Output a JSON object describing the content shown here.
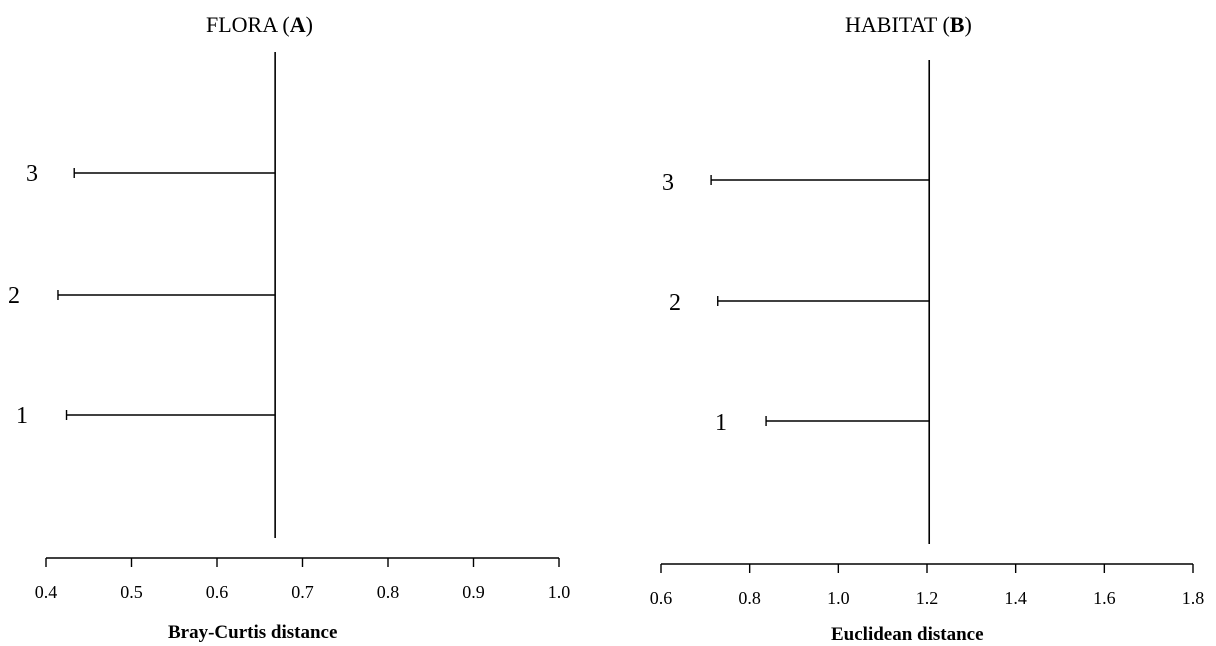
{
  "chart_data": [
    {
      "type": "dendrogram",
      "title_main": "FLORA (",
      "title_bold": "A",
      "title_end": ")",
      "xlabel": "Bray-Curtis distance",
      "xlim": [
        0.4,
        1.0
      ],
      "xticks": [
        "0.4",
        "0.5",
        "0.6",
        "0.7",
        "0.8",
        "0.9",
        "1.0"
      ],
      "join_distance": 0.668,
      "leaves": [
        {
          "label": "3",
          "distance": 0.433
        },
        {
          "label": "2",
          "distance": 0.414
        },
        {
          "label": "1",
          "distance": 0.424
        }
      ]
    },
    {
      "type": "dendrogram",
      "title_main": "HABITAT (",
      "title_bold": "B",
      "title_end": ")",
      "xlabel": "Euclidean distance",
      "xlim": [
        0.6,
        1.8
      ],
      "xticks": [
        "0.6",
        "0.8",
        "1.0",
        "1.2",
        "1.4",
        "1.6",
        "1.8"
      ],
      "join_distance": 1.205,
      "leaves": [
        {
          "label": "3",
          "distance": 0.713
        },
        {
          "label": "2",
          "distance": 0.728
        },
        {
          "label": "1",
          "distance": 0.837
        }
      ]
    }
  ]
}
